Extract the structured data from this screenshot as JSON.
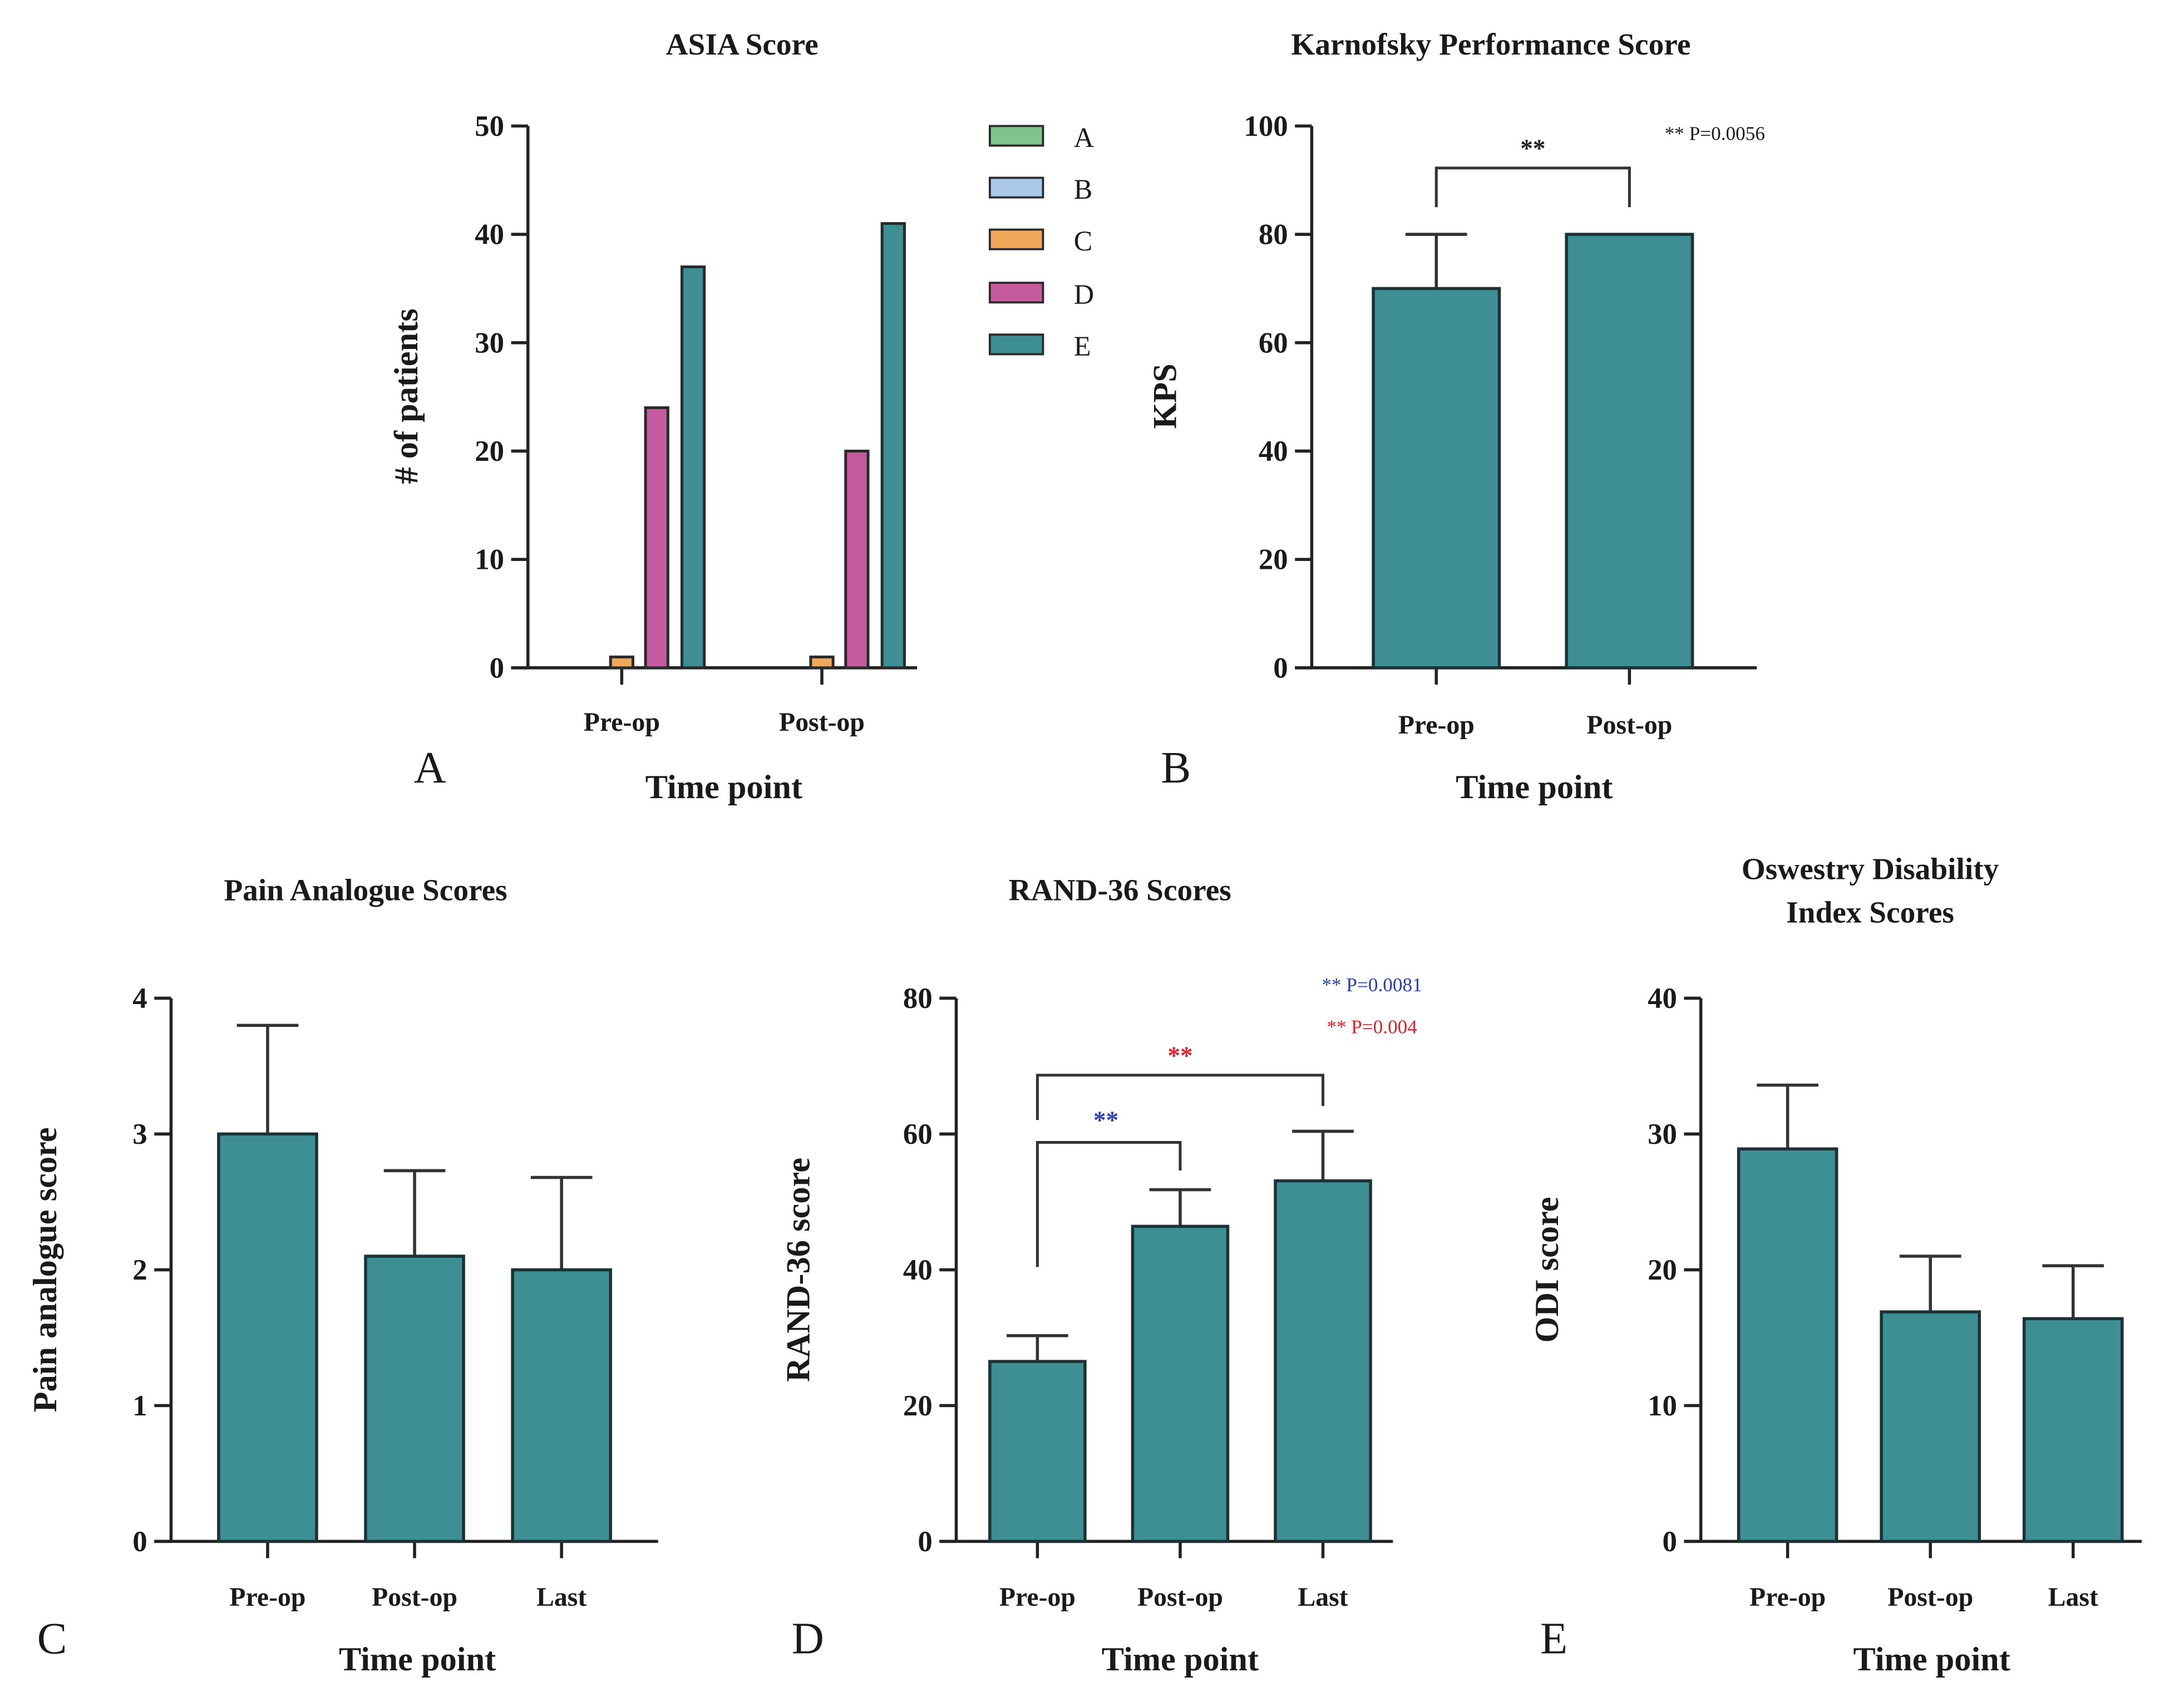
{
  "chart_data": [
    {
      "panel": "A",
      "type": "bar",
      "title": "ASIA Score",
      "xlabel": "Time point",
      "ylabel": "# of patients",
      "ylim": [
        0,
        50
      ],
      "yticks": [
        0,
        10,
        20,
        30,
        40,
        50
      ],
      "categories": [
        "Pre-op",
        "Post-op"
      ],
      "legend_position": "right",
      "series": [
        {
          "name": "A",
          "color": "#7fc38f",
          "values": [
            0,
            0
          ]
        },
        {
          "name": "B",
          "color": "#a9c8e8",
          "values": [
            0,
            0
          ]
        },
        {
          "name": "C",
          "color": "#f0a95a",
          "values": [
            1,
            1
          ]
        },
        {
          "name": "D",
          "color": "#c55a9f",
          "values": [
            24,
            20
          ]
        },
        {
          "name": "E",
          "color": "#3d8f93",
          "values": [
            37,
            41
          ]
        }
      ]
    },
    {
      "panel": "B",
      "type": "bar",
      "title": "Karnofsky Performance Score",
      "xlabel": "Time point",
      "ylabel": "KPS",
      "ylim": [
        0,
        100
      ],
      "yticks": [
        0,
        20,
        40,
        60,
        80,
        100
      ],
      "categories": [
        "Pre-op",
        "Post-op"
      ],
      "values": [
        70,
        80
      ],
      "error_upper": [
        80,
        80
      ],
      "color": "#3d8f93",
      "significance": [
        {
          "from": 0,
          "to": 1,
          "stars": "**",
          "note": "** P=0.0056",
          "color": "#1a1a1a"
        }
      ]
    },
    {
      "panel": "C",
      "type": "bar",
      "title": "Pain Analogue Scores",
      "xlabel": "Time point",
      "ylabel": "Pain analogue score",
      "ylim": [
        0,
        4
      ],
      "yticks": [
        0,
        1,
        2,
        3,
        4
      ],
      "categories": [
        "Pre-op",
        "Post-op",
        "Last"
      ],
      "values": [
        3.0,
        2.1,
        2.0
      ],
      "error_upper": [
        3.8,
        2.73,
        2.68
      ],
      "color": "#3d8f93"
    },
    {
      "panel": "D",
      "type": "bar",
      "title": "RAND-36 Scores",
      "xlabel": "Time point",
      "ylabel": "RAND-36 score",
      "ylim": [
        0,
        80
      ],
      "yticks": [
        0,
        20,
        40,
        60,
        80
      ],
      "categories": [
        "Pre-op",
        "Post-op",
        "Last"
      ],
      "values": [
        26.5,
        46.4,
        53.1
      ],
      "error_upper": [
        30.3,
        51.8,
        60.4
      ],
      "color": "#3d8f93",
      "significance": [
        {
          "from": 0,
          "to": 1,
          "stars": "**",
          "note": "** P=0.0081",
          "color": "#2b3fae"
        },
        {
          "from": 0,
          "to": 2,
          "stars": "**",
          "note": "** P=0.004",
          "color": "#e0202a"
        }
      ]
    },
    {
      "panel": "E",
      "type": "bar",
      "title": "Oswestry Disability Index Scores",
      "title_lines": [
        "Oswestry Disability",
        "Index Scores"
      ],
      "xlabel": "Time point",
      "ylabel": "ODI score",
      "ylim": [
        0,
        40
      ],
      "yticks": [
        0,
        10,
        20,
        30,
        40
      ],
      "categories": [
        "Pre-op",
        "Post-op",
        "Last"
      ],
      "values": [
        28.9,
        16.9,
        16.4
      ],
      "error_upper": [
        33.6,
        21.0,
        20.3
      ],
      "color": "#3d8f93"
    }
  ]
}
